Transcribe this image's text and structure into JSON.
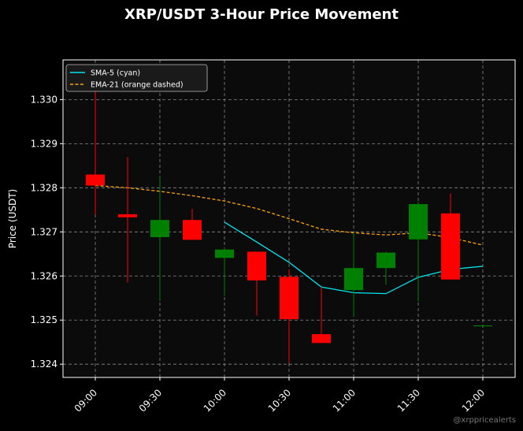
{
  "title": "XRP/USDT 3-Hour Price Movement",
  "watermark": "@xrppricealerts",
  "chart_data": {
    "type": "candlestick",
    "title": "XRP/USDT 3-Hour Price Movement",
    "ylabel": "Price (USDT)",
    "xlabel": "",
    "ylim": [
      1.3237,
      1.3309
    ],
    "xlim": [
      "08:45",
      "12:15"
    ],
    "grid": true,
    "legend_position": "upper-left",
    "background": "#0b0b0b",
    "yticks": [
      "1.324",
      "1.325",
      "1.326",
      "1.327",
      "1.328",
      "1.329",
      "1.330"
    ],
    "xticks": [
      "09:00",
      "09:30",
      "10:00",
      "10:30",
      "11:00",
      "11:30",
      "12:00"
    ],
    "colors": {
      "up": "#008000",
      "down": "#ff0000",
      "sma": "#00e5ee",
      "ema": "#ffa500",
      "grid": "#888888"
    },
    "candles": [
      {
        "t": "09:00",
        "open": 1.3283,
        "high": 1.3304,
        "low": 1.3274,
        "close": 1.32805
      },
      {
        "t": "09:15",
        "open": 1.3274,
        "high": 1.3287,
        "low": 1.32585,
        "close": 1.32733
      },
      {
        "t": "09:30",
        "open": 1.32688,
        "high": 1.32825,
        "low": 1.32543,
        "close": 1.32727
      },
      {
        "t": "09:45",
        "open": 1.32727,
        "high": 1.32752,
        "low": 1.32682,
        "close": 1.32682
      },
      {
        "t": "10:00",
        "open": 1.32641,
        "high": 1.32665,
        "low": 1.32555,
        "close": 1.3266
      },
      {
        "t": "10:15",
        "open": 1.32655,
        "high": 1.32655,
        "low": 1.3251,
        "close": 1.3259
      },
      {
        "t": "10:30",
        "open": 1.32598,
        "high": 1.32615,
        "low": 1.32402,
        "close": 1.32502
      },
      {
        "t": "10:45",
        "open": 1.32468,
        "high": 1.32575,
        "low": 1.32448,
        "close": 1.32448
      },
      {
        "t": "11:00",
        "open": 1.32568,
        "high": 1.32698,
        "low": 1.32508,
        "close": 1.32618
      },
      {
        "t": "11:15",
        "open": 1.32618,
        "high": 1.32655,
        "low": 1.3258,
        "close": 1.32653
      },
      {
        "t": "11:30",
        "open": 1.32683,
        "high": 1.32768,
        "low": 1.32542,
        "close": 1.32763
      },
      {
        "t": "11:45",
        "open": 1.32742,
        "high": 1.32787,
        "low": 1.32592,
        "close": 1.32592
      },
      {
        "t": "12:00",
        "open": 1.32488,
        "high": 1.32488,
        "low": 1.32488,
        "close": 1.32488
      }
    ],
    "series": [
      {
        "name": "SMA-5 (cyan)",
        "style": "solid",
        "color": "#00e5ee",
        "x": [
          "10:00",
          "10:15",
          "10:30",
          "10:45",
          "11:00",
          "11:15",
          "11:30",
          "11:45",
          "12:00"
        ],
        "values": [
          1.32722,
          1.32677,
          1.32631,
          1.32575,
          1.32562,
          1.3256,
          1.32597,
          1.32615,
          1.32622
        ]
      },
      {
        "name": "EMA-21 (orange dashed)",
        "style": "dashed",
        "color": "#ffa500",
        "x": [
          "09:00",
          "09:15",
          "09:30",
          "09:45",
          "10:00",
          "10:15",
          "10:30",
          "10:45",
          "11:00",
          "11:15",
          "11:30",
          "11:45",
          "12:00"
        ],
        "values": [
          1.32805,
          1.328,
          1.32792,
          1.32782,
          1.3277,
          1.32753,
          1.3273,
          1.32706,
          1.32698,
          1.32693,
          1.32698,
          1.32687,
          1.3267
        ]
      }
    ]
  }
}
